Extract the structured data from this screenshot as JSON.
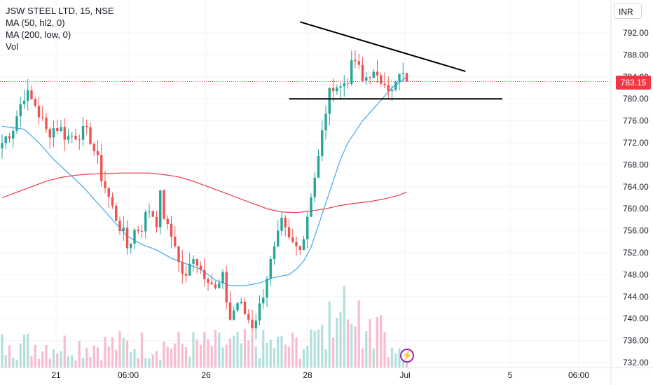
{
  "legend": {
    "symbol": "JSW STEEL LTD, 15, NSE",
    "ma50": "MA (50, hl2, 0)",
    "ma200": "MA (200, low, 0)",
    "vol": "Vol"
  },
  "price_axis": {
    "currency": "INR",
    "current_price": "783.15"
  },
  "colors": {
    "up": "#26a69a",
    "down": "#ef5350",
    "ma50": "#42a5f5",
    "ma200": "#f23645",
    "trendline": "#000000",
    "vol_up": "#b2dfdb",
    "vol_down": "#f8bbd0",
    "price_line": "#f23645"
  },
  "icons": {
    "replay": "lightning-bolt-icon"
  },
  "chart_data": {
    "type": "candlestick",
    "title": "JSW STEEL LTD, 15, NSE",
    "ylim": [
      731,
      796
    ],
    "y_ticks": [
      "732.00",
      "736.00",
      "740.00",
      "744.00",
      "748.00",
      "752.00",
      "756.00",
      "760.00",
      "764.00",
      "768.00",
      "772.00",
      "776.00",
      "780.00",
      "784.00",
      "788.00",
      "792.00"
    ],
    "x_ticks": [
      "21",
      "06:00",
      "26",
      "28",
      "Jul",
      "5",
      "06:00"
    ],
    "current_price": 783.15,
    "grid": true,
    "close_path": [
      [
        0,
        772
      ],
      [
        3,
        775
      ],
      [
        6,
        781
      ],
      [
        9,
        779
      ],
      [
        12,
        774
      ],
      [
        15,
        775
      ],
      [
        18,
        773
      ],
      [
        21,
        774
      ],
      [
        24,
        773
      ],
      [
        27,
        766
      ],
      [
        30,
        760
      ],
      [
        32,
        757
      ],
      [
        34,
        753
      ],
      [
        36,
        756
      ],
      [
        38,
        757
      ],
      [
        40,
        760
      ],
      [
        42,
        758
      ],
      [
        43,
        762
      ],
      [
        45,
        756
      ],
      [
        47,
        754
      ],
      [
        48,
        750
      ],
      [
        50,
        747
      ],
      [
        52,
        752
      ],
      [
        54,
        749
      ],
      [
        56,
        748
      ],
      [
        58,
        745
      ],
      [
        60,
        747
      ],
      [
        62,
        740
      ],
      [
        64,
        743
      ],
      [
        66,
        741
      ],
      [
        68,
        739
      ],
      [
        70,
        742
      ],
      [
        72,
        748
      ],
      [
        74,
        752
      ],
      [
        76,
        757
      ],
      [
        78,
        754
      ],
      [
        80,
        753
      ],
      [
        82,
        755
      ],
      [
        84,
        763
      ],
      [
        86,
        769
      ],
      [
        88,
        778
      ],
      [
        90,
        783
      ],
      [
        92,
        782
      ],
      [
        94,
        784
      ],
      [
        96,
        787
      ],
      [
        98,
        783
      ],
      [
        100,
        785
      ],
      [
        102,
        783
      ],
      [
        104,
        784
      ],
      [
        106,
        781
      ],
      [
        108,
        784
      ],
      [
        110,
        783
      ]
    ],
    "series": [
      {
        "name": "MA (50, hl2, 0)",
        "values": [
          [
            0,
            775
          ],
          [
            6,
            774.5
          ],
          [
            10,
            772
          ],
          [
            14,
            769
          ],
          [
            18,
            766.5
          ],
          [
            22,
            764
          ],
          [
            26,
            761
          ],
          [
            30,
            758
          ],
          [
            34,
            755
          ],
          [
            38,
            753.5
          ],
          [
            42,
            752.5
          ],
          [
            46,
            751
          ],
          [
            50,
            750
          ],
          [
            54,
            749
          ],
          [
            58,
            747
          ],
          [
            62,
            746
          ],
          [
            66,
            746
          ],
          [
            70,
            746.5
          ],
          [
            74,
            747.5
          ],
          [
            78,
            748
          ],
          [
            80,
            749
          ],
          [
            82,
            750.5
          ],
          [
            84,
            753
          ],
          [
            86,
            757
          ],
          [
            88,
            761
          ],
          [
            90,
            765
          ],
          [
            92,
            769
          ],
          [
            94,
            772
          ],
          [
            96,
            774
          ],
          [
            98,
            776
          ],
          [
            100,
            777.5
          ],
          [
            102,
            779
          ],
          [
            104,
            780.5
          ],
          [
            106,
            782
          ],
          [
            108,
            783
          ],
          [
            110,
            784
          ]
        ]
      },
      {
        "name": "MA (200, low, 0)",
        "values": [
          [
            0,
            762
          ],
          [
            4,
            763
          ],
          [
            8,
            764
          ],
          [
            12,
            765
          ],
          [
            16,
            765.7
          ],
          [
            20,
            766.1
          ],
          [
            24,
            766.3
          ],
          [
            28,
            766.4
          ],
          [
            32,
            766.5
          ],
          [
            36,
            766.5
          ],
          [
            40,
            766.5
          ],
          [
            44,
            766.2
          ],
          [
            48,
            765.8
          ],
          [
            52,
            765
          ],
          [
            56,
            764
          ],
          [
            60,
            763
          ],
          [
            64,
            762
          ],
          [
            68,
            761
          ],
          [
            72,
            760
          ],
          [
            76,
            759.4
          ],
          [
            80,
            759.3
          ],
          [
            84,
            759.6
          ],
          [
            88,
            760
          ],
          [
            92,
            760.6
          ],
          [
            96,
            761
          ],
          [
            100,
            761.3
          ],
          [
            104,
            761.8
          ],
          [
            108,
            762.5
          ],
          [
            110,
            763
          ]
        ]
      }
    ],
    "trendlines": [
      {
        "from": [
          81,
          794
        ],
        "to": [
          126,
          785
        ]
      },
      {
        "from": [
          78,
          780
        ],
        "to": [
          136,
          780
        ]
      }
    ]
  }
}
